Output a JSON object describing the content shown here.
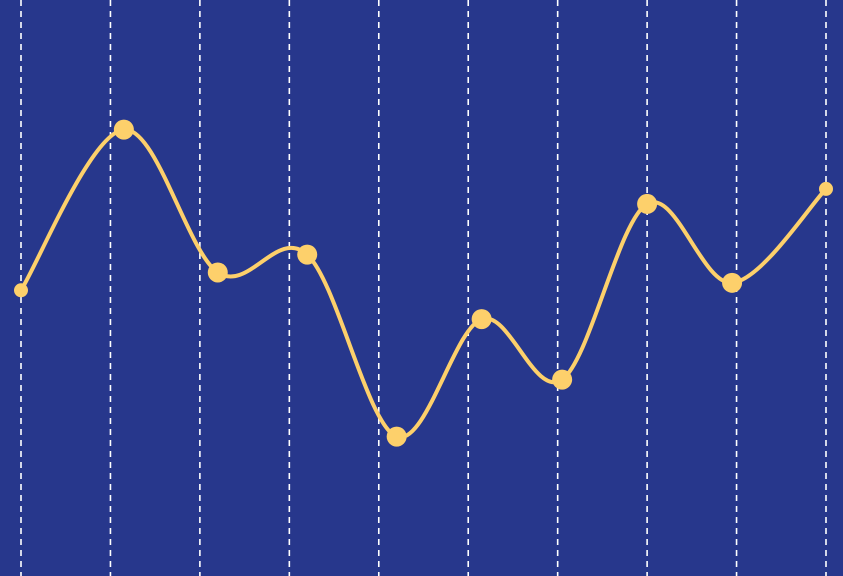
{
  "chart_data": {
    "type": "line",
    "title": "",
    "xlabel": "",
    "ylabel": "",
    "grid": {
      "vertical": true,
      "horizontal": false,
      "style": "dashed"
    },
    "legend": "none",
    "x": [
      0,
      1,
      2,
      3,
      4,
      5,
      6,
      7,
      8,
      9
    ],
    "series": [
      {
        "values": [
          0.496,
          0.775,
          0.527,
          0.558,
          0.242,
          0.446,
          0.341,
          0.646,
          0.509,
          0.672
        ],
        "irregular_x": [
          0.0,
          1.15,
          2.2,
          3.2,
          4.2,
          5.15,
          6.05,
          7.0,
          7.95,
          9.0
        ]
      }
    ],
    "xlim": [
      0,
      9
    ],
    "ylim": [
      0,
      1
    ],
    "colors": {
      "background": "#27378c",
      "line": "#fdd06b",
      "point": "#fdd06b",
      "grid": "#ffffff"
    }
  }
}
